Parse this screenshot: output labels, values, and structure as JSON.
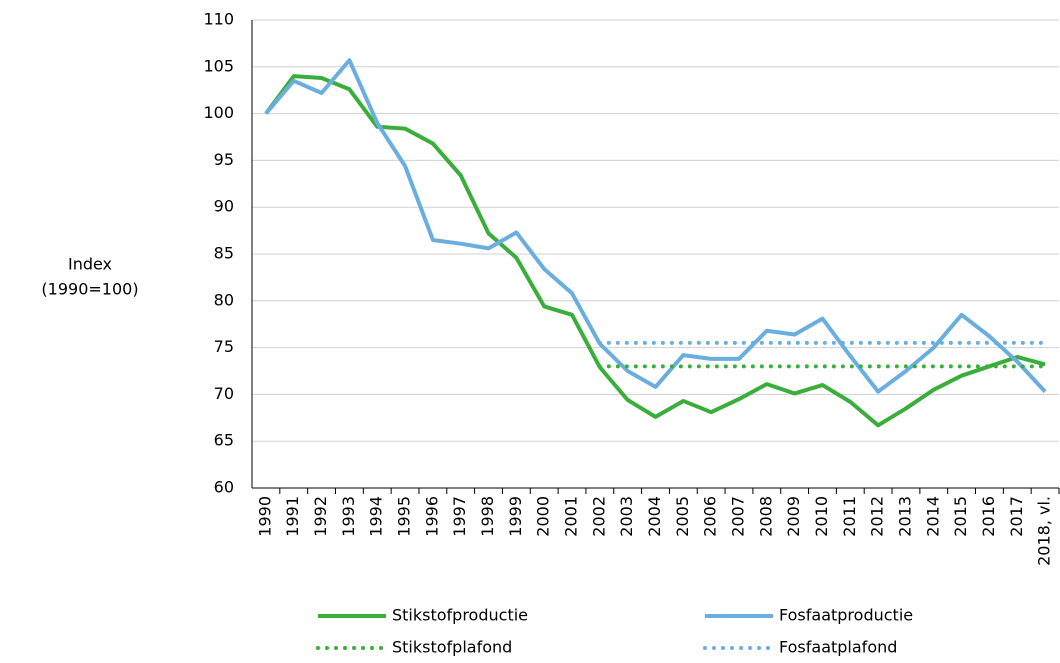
{
  "chart_data": {
    "type": "line",
    "y_label": [
      "Index",
      "(1990=100)"
    ],
    "categories": [
      "1990",
      "1991",
      "1992",
      "1993",
      "1994",
      "1995",
      "1996",
      "1997",
      "1998",
      "1999",
      "2000",
      "2001",
      "2002",
      "2003",
      "2004",
      "2005",
      "2006",
      "2007",
      "2008",
      "2009",
      "2010",
      "2011",
      "2012",
      "2013",
      "2014",
      "2015",
      "2016",
      "2017",
      "2018, vl."
    ],
    "series": [
      {
        "name": "Stikstofproductie",
        "color": "#3aae3a",
        "style": "solid",
        "values": [
          100,
          104,
          103.8,
          102.6,
          98.6,
          98.4,
          96.8,
          93.4,
          87.2,
          84.6,
          79.4,
          78.5,
          72.9,
          69.4,
          67.6,
          69.3,
          68.1,
          69.5,
          71.1,
          70.1,
          71.0,
          69.2,
          66.7,
          68.5,
          70.5,
          72.0,
          73.0,
          74.0,
          73.2
        ]
      },
      {
        "name": "Fosfaatproductie",
        "color": "#6aaee0",
        "style": "solid",
        "values": [
          100,
          103.5,
          102.2,
          105.7,
          99.0,
          94.4,
          86.5,
          86.1,
          85.6,
          87.3,
          83.4,
          80.8,
          75.4,
          72.5,
          70.8,
          74.2,
          73.8,
          73.8,
          76.8,
          76.4,
          78.1,
          74.1,
          70.3,
          72.5,
          75.0,
          78.5,
          76.2,
          73.5,
          70.3
        ]
      },
      {
        "name": "Stikstofplafond",
        "color": "#3aae3a",
        "style": "dotted",
        "values": [
          null,
          null,
          null,
          null,
          null,
          null,
          null,
          null,
          null,
          null,
          null,
          null,
          73,
          73,
          73,
          73,
          73,
          73,
          73,
          73,
          73,
          73,
          73,
          73,
          73,
          73,
          73,
          73,
          73
        ]
      },
      {
        "name": "Fosfaatplafond",
        "color": "#6aaee0",
        "style": "dotted",
        "values": [
          null,
          null,
          null,
          null,
          null,
          null,
          null,
          null,
          null,
          null,
          null,
          null,
          75.5,
          75.5,
          75.5,
          75.5,
          75.5,
          75.5,
          75.5,
          75.5,
          75.5,
          75.5,
          75.5,
          75.5,
          75.5,
          75.5,
          75.5,
          75.5,
          75.5
        ]
      }
    ],
    "ylim": [
      60,
      110
    ],
    "yticks": [
      60,
      65,
      70,
      75,
      80,
      85,
      90,
      95,
      100,
      105,
      110
    ],
    "grid": true
  }
}
